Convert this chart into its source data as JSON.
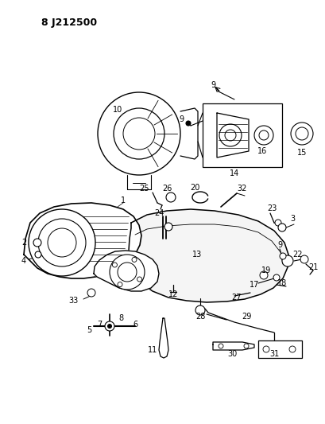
{
  "title": "8 J212500",
  "bg_color": "#ffffff",
  "fg_color": "#000000",
  "fig_width": 4.1,
  "fig_height": 5.33,
  "dpi": 100
}
